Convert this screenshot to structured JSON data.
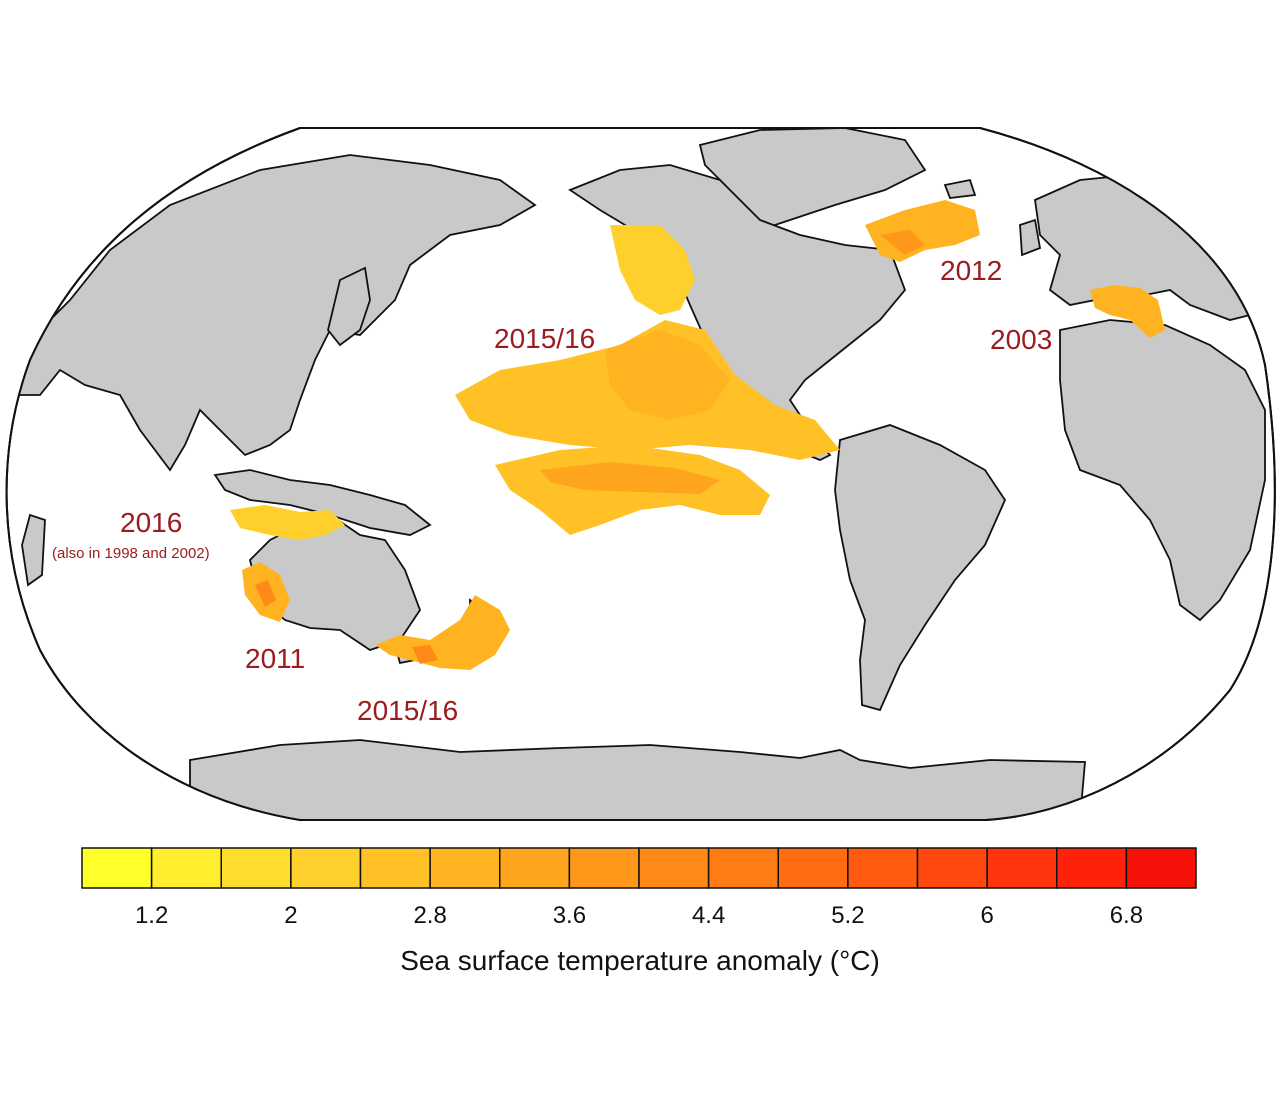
{
  "colors": {
    "ocean": "#ffffff",
    "land": "#c9c9c9",
    "coast": "#111111",
    "label": "#9b1b1f"
  },
  "map": {
    "labels": {
      "northeast_pacific": "2015/16",
      "north_atlantic": "2012",
      "mediterranean": "2003",
      "northwest_australia": "2016",
      "northwest_australia_note": "(also in 1998 and 2002)",
      "western_australia": "2011",
      "tasman_sea": "2015/16"
    }
  },
  "colorbar": {
    "title": "Sea surface temperature anomaly (°C)",
    "tick_values": [
      "1.2",
      "2",
      "2.8",
      "3.6",
      "4.4",
      "5.2",
      "6",
      "6.8"
    ],
    "bins": 16,
    "min": 0.8,
    "max": 7.2,
    "colors": [
      "#ffff2a",
      "#ffed2e",
      "#ffdd2e",
      "#ffcf2b",
      "#ffc126",
      "#ffb321",
      "#ffa51d",
      "#ff981a",
      "#ff8a17",
      "#ff7b14",
      "#ff6c12",
      "#ff5a10",
      "#ff480e",
      "#ff330c",
      "#ff220a",
      "#f61208"
    ]
  }
}
